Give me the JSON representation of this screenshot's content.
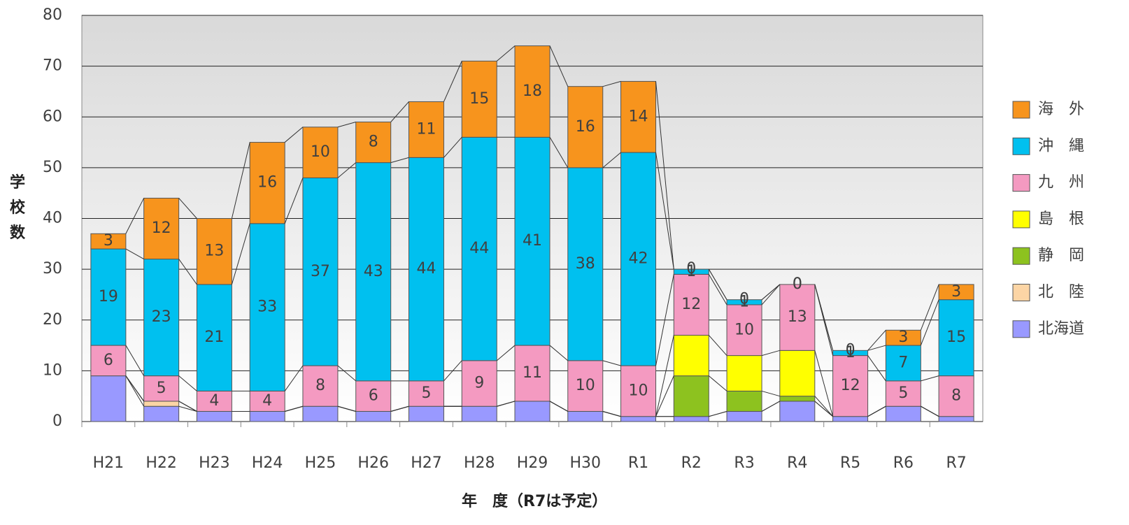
{
  "chart_data": {
    "type": "stacked_bar",
    "y_label": "学校数",
    "x_label": "年　度（R7は予定）",
    "categories": [
      "H21",
      "H22",
      "H23",
      "H24",
      "H25",
      "H26",
      "H27",
      "H28",
      "H29",
      "H30",
      "R1",
      "R2",
      "R3",
      "R4",
      "R5",
      "R6",
      "R7"
    ],
    "series": [
      {
        "name": "北海道",
        "color": "#9999ff",
        "data_labels": false,
        "values": [
          9,
          3,
          2,
          2,
          3,
          2,
          3,
          3,
          4,
          2,
          1,
          1,
          2,
          4,
          1,
          3,
          1
        ]
      },
      {
        "name": "北　陸",
        "color": "#fcd5a5",
        "data_labels": false,
        "values": [
          0,
          1,
          0,
          0,
          0,
          0,
          0,
          0,
          0,
          0,
          0,
          0,
          0,
          0,
          0,
          0,
          0
        ]
      },
      {
        "name": "静　岡",
        "color": "#8dc21f",
        "data_labels": false,
        "values": [
          0,
          0,
          0,
          0,
          0,
          0,
          0,
          0,
          0,
          0,
          0,
          8,
          4,
          1,
          0,
          0,
          0
        ]
      },
      {
        "name": "島　根",
        "color": "#ffff00",
        "data_labels": false,
        "values": [
          0,
          0,
          0,
          0,
          0,
          0,
          0,
          0,
          0,
          0,
          0,
          8,
          7,
          9,
          0,
          0,
          0
        ]
      },
      {
        "name": "九　州",
        "color": "#f49ac1",
        "data_labels": true,
        "values": [
          6,
          5,
          4,
          4,
          8,
          6,
          5,
          9,
          11,
          10,
          10,
          12,
          10,
          13,
          12,
          5,
          8
        ]
      },
      {
        "name": "沖　縄",
        "color": "#00c0ef",
        "data_labels": true,
        "values": [
          19,
          23,
          21,
          33,
          37,
          43,
          44,
          44,
          41,
          38,
          42,
          1,
          1,
          0,
          1,
          7,
          15
        ]
      },
      {
        "name": "海　外",
        "color": "#f7941d",
        "data_labels": true,
        "values": [
          3,
          12,
          13,
          16,
          10,
          8,
          11,
          15,
          18,
          16,
          14,
          0,
          0,
          0,
          0,
          3,
          3
        ]
      }
    ],
    "ylim": [
      0,
      80
    ],
    "yticks": [
      0,
      10,
      20,
      30,
      40,
      50,
      60,
      70,
      80
    ],
    "grid": true,
    "series_lines": true,
    "legend": "right"
  }
}
